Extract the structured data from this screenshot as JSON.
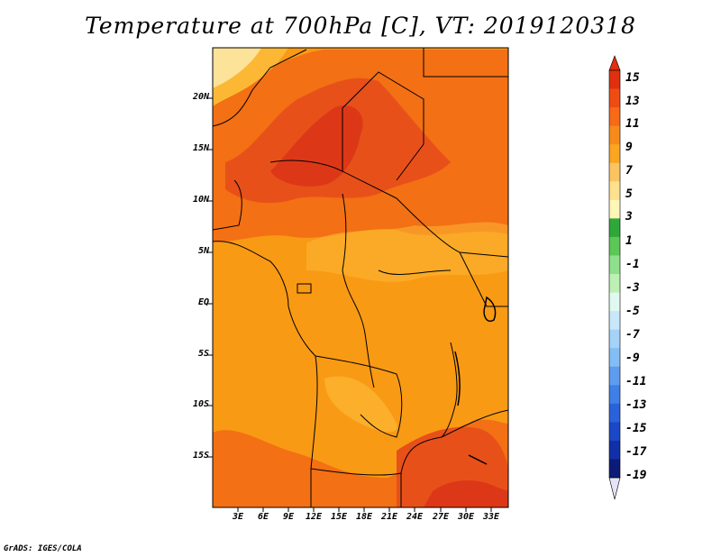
{
  "title": "Temperature at 700hPa [C], VT: 2019120318",
  "credit": "GrADS: IGES/COLA",
  "latitude_ticks": [
    "20N",
    "15N",
    "10N",
    "5N",
    "EQ",
    "5S",
    "10S",
    "15S"
  ],
  "longitude_ticks": [
    "3E",
    "6E",
    "9E",
    "12E",
    "15E",
    "18E",
    "21E",
    "24E",
    "27E",
    "30E",
    "33E"
  ],
  "colorbar": {
    "labels": [
      "15",
      "13",
      "11",
      "9",
      "7",
      "5",
      "3",
      "1",
      "-1",
      "-3",
      "-5",
      "-7",
      "-9",
      "-11",
      "-13",
      "-15",
      "-17",
      "-19"
    ],
    "colors": [
      "#e03010",
      "#ef4c14",
      "#f66a18",
      "#f88a1c",
      "#fba520",
      "#fbc460",
      "#fde18c",
      "#fff6b8",
      "#2fa83a",
      "#5cc756",
      "#8fe08a",
      "#bdf0b4",
      "#dff8f0",
      "#c8e7fa",
      "#a4d2f8",
      "#84bdf6",
      "#5e9cf0",
      "#3f7fe8",
      "#2a62dc",
      "#1a48c8",
      "#1030a8",
      "#0c1b78",
      "#e4e4f6"
    ]
  },
  "map_region": {
    "lon_range": [
      0,
      35
    ],
    "lat_range": [
      -20,
      24
    ],
    "field_colors": {
      "base": "#f99a14",
      "warm": "#f37014",
      "hot": "#e8501a",
      "hotter": "#dc3818",
      "cool": "#fcb834",
      "cooler": "#fde29a"
    }
  }
}
